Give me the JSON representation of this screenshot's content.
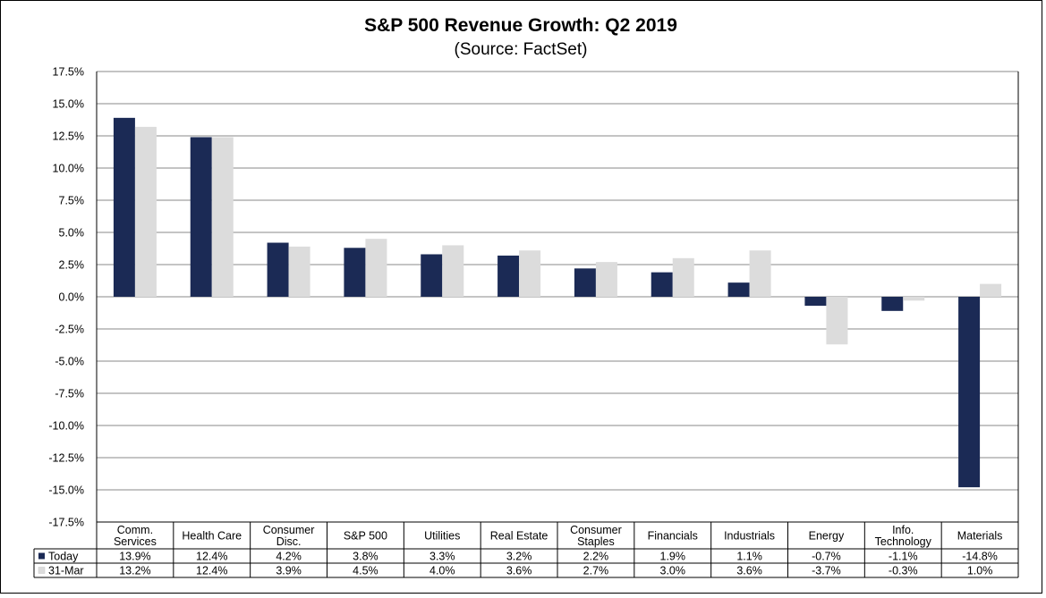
{
  "chart_data": {
    "type": "bar",
    "title": "S&P 500 Revenue Growth: Q2 2019",
    "subtitle": "(Source: FactSet)",
    "categories": [
      [
        "Comm.",
        "Services"
      ],
      [
        "Health Care"
      ],
      [
        "Consumer",
        "Disc."
      ],
      [
        "S&P 500"
      ],
      [
        "Utilities"
      ],
      [
        "Real Estate"
      ],
      [
        "Consumer",
        "Staples"
      ],
      [
        "Financials"
      ],
      [
        "Industrials"
      ],
      [
        "Energy"
      ],
      [
        "Info.",
        "Technology"
      ],
      [
        "Materials"
      ]
    ],
    "series": [
      {
        "name": "Today",
        "color": "#1b2a55",
        "values": [
          13.9,
          12.4,
          4.2,
          3.8,
          3.3,
          3.2,
          2.2,
          1.9,
          1.1,
          -0.7,
          -1.1,
          -14.8
        ],
        "labels": [
          "13.9%",
          "12.4%",
          "4.2%",
          "3.8%",
          "3.3%",
          "3.2%",
          "2.2%",
          "1.9%",
          "1.1%",
          "-0.7%",
          "-1.1%",
          "-14.8%"
        ]
      },
      {
        "name": "31-Mar",
        "color": "#dcdcdc",
        "values": [
          13.2,
          12.4,
          3.9,
          4.5,
          4.0,
          3.6,
          2.7,
          3.0,
          3.6,
          -3.7,
          -0.3,
          1.0
        ],
        "labels": [
          "13.2%",
          "12.4%",
          "3.9%",
          "4.5%",
          "4.0%",
          "3.6%",
          "2.7%",
          "3.0%",
          "3.6%",
          "-3.7%",
          "-0.3%",
          "1.0%"
        ]
      }
    ],
    "ylim": [
      -17.5,
      17.5
    ],
    "yticks": [
      17.5,
      15.0,
      12.5,
      10.0,
      7.5,
      5.0,
      2.5,
      0.0,
      -2.5,
      -5.0,
      -7.5,
      -10.0,
      -12.5,
      -15.0,
      -17.5
    ],
    "ytick_labels": [
      "17.5%",
      "15.0%",
      "12.5%",
      "10.0%",
      "7.5%",
      "5.0%",
      "2.5%",
      "0.0%",
      "-2.5%",
      "-5.0%",
      "-7.5%",
      "-10.0%",
      "-12.5%",
      "-15.0%",
      "-17.5%"
    ],
    "grid": true,
    "legend": "data-table"
  }
}
